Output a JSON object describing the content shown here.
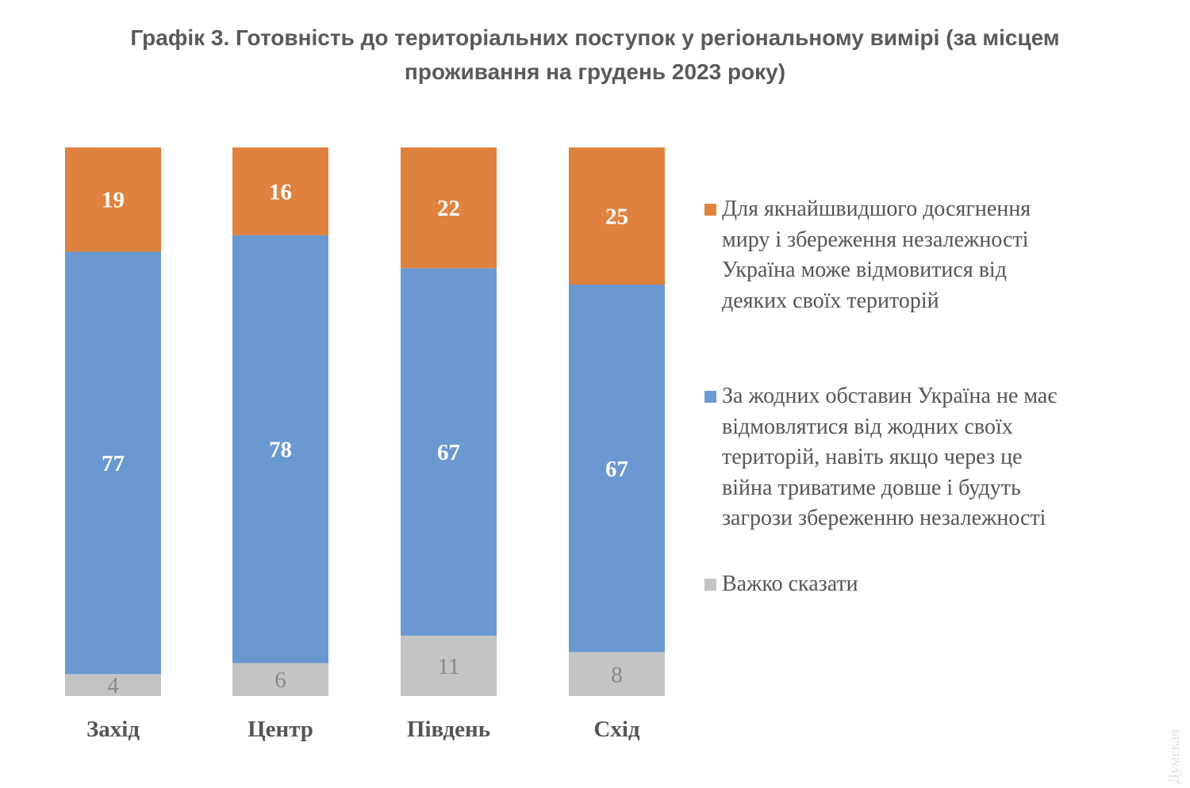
{
  "chart_data": {
    "type": "bar",
    "stacked": true,
    "title": "Графік 3. Готовність до територіальних поступок у регіональному вимірі (за місцем проживання на грудень 2023 року)",
    "title_lines": [
      "Графік 3. Готовність до територіальних поступок у регіональному вимірі (за місцем",
      "проживання на грудень 2023 року)"
    ],
    "categories": [
      "Захід",
      "Центр",
      "Південь",
      "Схід"
    ],
    "series": [
      {
        "name": "Важко сказати",
        "color": "#C4C4C4",
        "label_color": "#888888",
        "values": [
          4,
          6,
          11,
          8
        ]
      },
      {
        "name": "За жодних обставин Україна не має відмовлятися від жодних своїх територій, навіть якщо через це війна триватиме довше і будуть загрози збереженню незалежності",
        "color": "#6A98D0",
        "label_color": "#FFFFFF",
        "values": [
          77,
          78,
          67,
          67
        ]
      },
      {
        "name": "Для якнайшвидшого досягнення миру і збереження незалежності Україна може відмовитися від деяких своїх територій",
        "color": "#E0823F",
        "label_color": "#FFFFFF",
        "values": [
          19,
          16,
          22,
          25
        ]
      }
    ],
    "ylim": [
      0,
      100
    ],
    "grid": false,
    "legend_position": "right",
    "legend": [
      {
        "lines": [
          "Для якнайшвидшого досягнення",
          "миру і збереження незалежності",
          "Україна може відмовитися від",
          "деяких своїх територій"
        ],
        "color": "#E0823F"
      },
      {
        "lines": [
          "За жодних обставин Україна не має",
          "відмовлятися від жодних своїх",
          "територій, навіть якщо через це",
          "війна триватиме довше і будуть",
          "загрози збереженню незалежності"
        ],
        "color": "#6A98D0"
      },
      {
        "lines": [
          "Важко сказати"
        ],
        "color": "#C4C4C4"
      }
    ]
  },
  "watermark": "Думская"
}
